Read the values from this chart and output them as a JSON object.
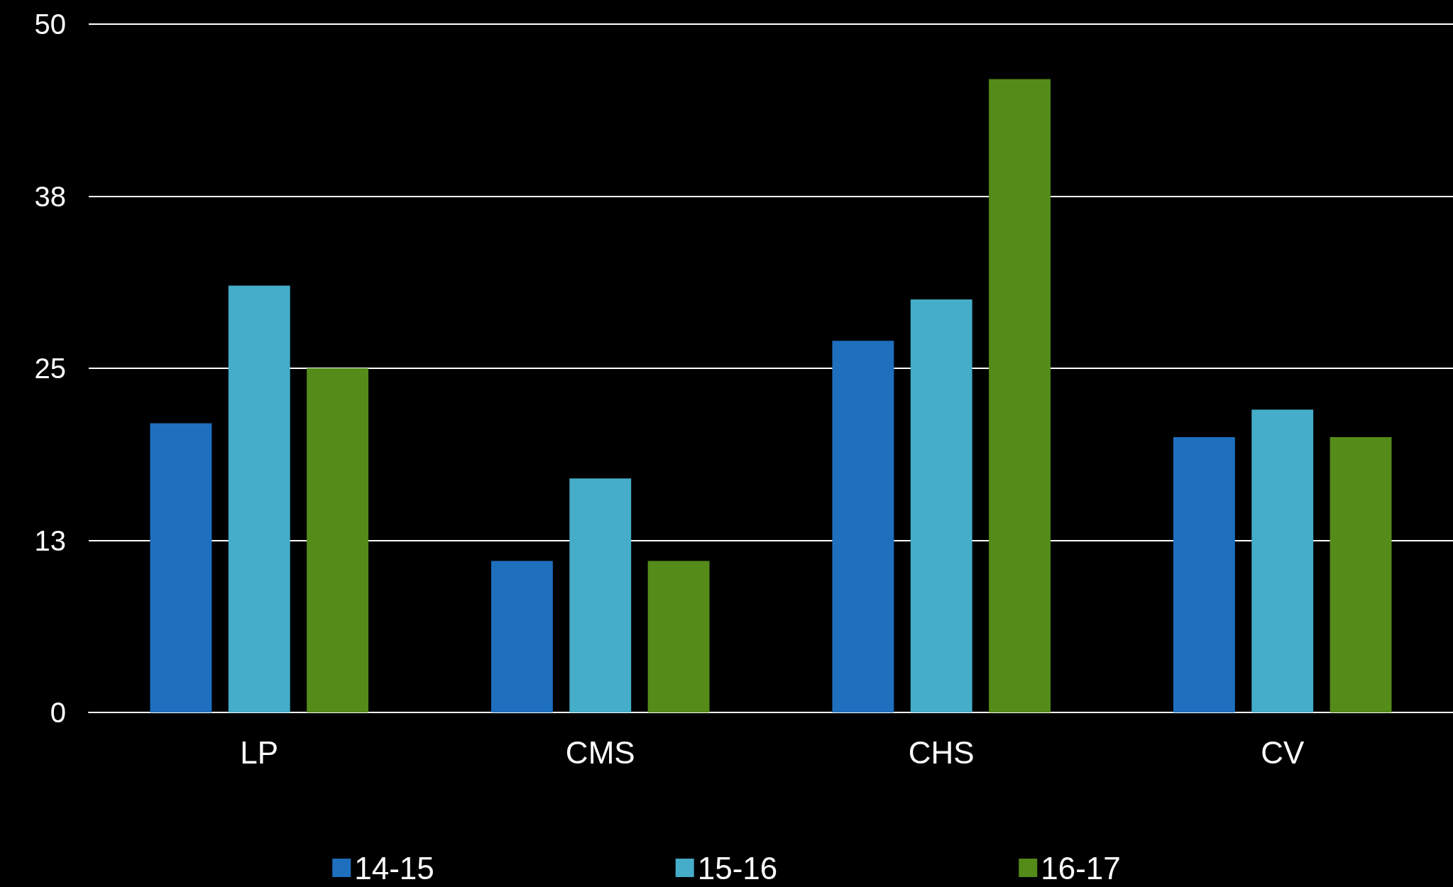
{
  "chart_data": {
    "type": "bar",
    "categories": [
      "LP",
      "CMS",
      "CHS",
      "CV"
    ],
    "series": [
      {
        "name": "14-15",
        "color": "#1f6fbf",
        "values": [
          21,
          11,
          27,
          20
        ]
      },
      {
        "name": "15-16",
        "color": "#45adc9",
        "values": [
          31,
          17,
          30,
          22
        ]
      },
      {
        "name": "16-17",
        "color": "#548b19",
        "values": [
          25,
          11,
          46,
          20
        ]
      }
    ],
    "ylim": [
      0,
      50
    ],
    "yticks": [
      0,
      {
        "value": 12.5,
        "label": "13"
      },
      25,
      {
        "value": 37.5,
        "label": "38"
      },
      50
    ],
    "grid": "y",
    "legend": "bottom"
  }
}
